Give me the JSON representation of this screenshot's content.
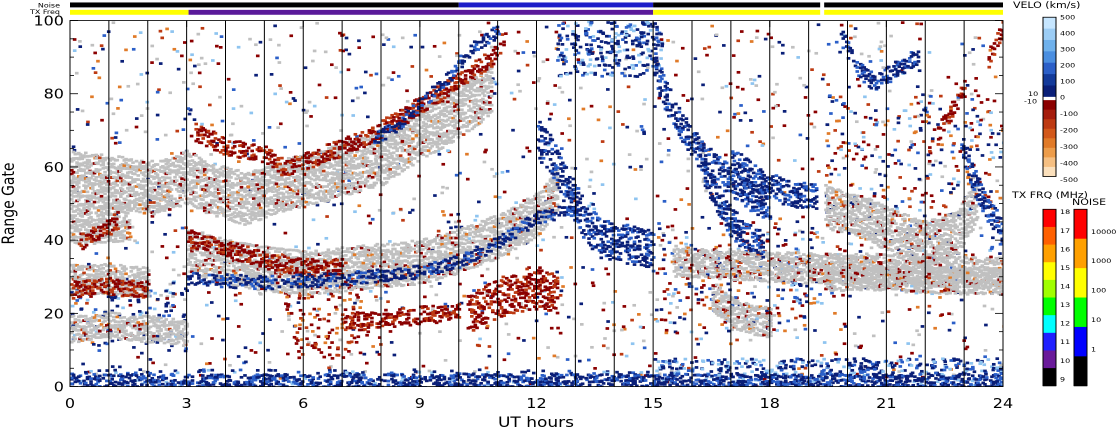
{
  "chart_data": {
    "type": "heatmap",
    "title": "",
    "xlabel": "UT hours",
    "ylabel": "Range Gate",
    "xlim": [
      0,
      24
    ],
    "ylim": [
      0,
      100
    ],
    "xticks": [
      "0",
      "3",
      "6",
      "9",
      "12",
      "15",
      "18",
      "21",
      "24"
    ],
    "yticks": [
      "0",
      "20",
      "40",
      "60",
      "80",
      "100"
    ],
    "hour_lines": [
      1,
      2,
      3,
      4,
      5,
      6,
      7,
      8,
      9,
      10,
      11,
      12,
      13,
      14,
      15,
      16,
      17,
      18,
      19,
      20,
      21,
      22,
      23
    ],
    "status_bars": {
      "noise_label": "Noise",
      "txfreq_label": "TX Freq",
      "txfreq_segments": [
        {
          "from": 0,
          "to": 3.05,
          "color": "#ffff00"
        },
        {
          "from": 3.05,
          "to": 15.0,
          "color": "#5a1a9a"
        },
        {
          "from": 15.0,
          "to": 19.3,
          "color": "#ffff00"
        },
        {
          "from": 19.3,
          "to": 19.4,
          "color": "#ffffff"
        },
        {
          "from": 19.4,
          "to": 24,
          "color": "#ffff00"
        }
      ],
      "noise_segments": [
        {
          "from": 0,
          "to": 10.0,
          "color": "#000000"
        },
        {
          "from": 10.0,
          "to": 15.0,
          "color": "#1c1cc8"
        },
        {
          "from": 15.0,
          "to": 19.3,
          "color": "#000000"
        },
        {
          "from": 19.3,
          "to": 19.4,
          "color": "#ffffff"
        },
        {
          "from": 19.4,
          "to": 24,
          "color": "#000000"
        }
      ]
    },
    "series": [
      {
        "kind": "ground",
        "points": [
          [
            0,
            58
          ],
          [
            0.8,
            57
          ],
          [
            1.5,
            56
          ],
          [
            2.2,
            55
          ],
          [
            3,
            58
          ],
          [
            3.5,
            55
          ],
          [
            4.5,
            52
          ],
          [
            5.2,
            55
          ],
          [
            6,
            57
          ],
          [
            7,
            60
          ],
          [
            8,
            63
          ],
          [
            9,
            70
          ],
          [
            10,
            76
          ],
          [
            10.8,
            82
          ]
        ],
        "width": 7
      },
      {
        "kind": "ground",
        "points": [
          [
            0,
            45
          ],
          [
            0.8,
            45
          ],
          [
            1.5,
            46
          ]
        ],
        "width": 5
      },
      {
        "kind": "ground",
        "points": [
          [
            3,
            38
          ],
          [
            4,
            35
          ],
          [
            5,
            33
          ],
          [
            6,
            32
          ],
          [
            7,
            33
          ],
          [
            8,
            34
          ],
          [
            9,
            35
          ],
          [
            10,
            38
          ],
          [
            11,
            42
          ],
          [
            12,
            48
          ],
          [
            12.5,
            55
          ]
        ],
        "width": 6
      },
      {
        "kind": "ground",
        "points": [
          [
            0,
            30
          ],
          [
            1,
            30
          ],
          [
            2,
            29
          ]
        ],
        "width": 4
      },
      {
        "kind": "ground",
        "points": [
          [
            0,
            16
          ],
          [
            1,
            17
          ],
          [
            2,
            16
          ],
          [
            3,
            15
          ]
        ],
        "width": 3
      },
      {
        "kind": "ground",
        "points": [
          [
            19.4,
            50
          ],
          [
            20.2,
            48
          ],
          [
            21,
            44
          ],
          [
            21.5,
            42
          ],
          [
            22,
            40
          ],
          [
            22.8,
            43
          ],
          [
            23.3,
            52
          ]
        ],
        "width": 6
      },
      {
        "kind": "ground",
        "points": [
          [
            15.5,
            35
          ],
          [
            17,
            34
          ],
          [
            19,
            33
          ],
          [
            21,
            33
          ],
          [
            22.5,
            32
          ],
          [
            24,
            32
          ]
        ],
        "width": 4
      },
      {
        "kind": "ground",
        "points": [
          [
            19.4,
            30
          ],
          [
            21,
            30
          ],
          [
            23,
            29
          ],
          [
            24,
            29
          ]
        ],
        "width": 3
      },
      {
        "kind": "ground",
        "points": [
          [
            16.5,
            25
          ],
          [
            17.2,
            20
          ],
          [
            18,
            18
          ]
        ],
        "width": 4
      },
      {
        "kind": "neg",
        "points": [
          [
            10.2,
            20
          ],
          [
            10.5,
            22
          ],
          [
            11,
            25
          ],
          [
            11.5,
            26
          ],
          [
            12,
            27
          ],
          [
            12.5,
            26
          ]
        ],
        "width": 5
      },
      {
        "kind": "neg",
        "points": [
          [
            7,
            18
          ],
          [
            8,
            19
          ],
          [
            9,
            20
          ],
          [
            10,
            21
          ]
        ],
        "width": 2
      },
      {
        "kind": "neg",
        "points": [
          [
            3.2,
            70
          ],
          [
            4,
            66
          ],
          [
            5,
            64
          ],
          [
            5.5,
            60
          ],
          [
            6,
            62
          ],
          [
            6.5,
            64
          ],
          [
            7.5,
            68
          ],
          [
            8.5,
            74
          ],
          [
            9.2,
            79
          ],
          [
            9.8,
            83
          ],
          [
            10.2,
            86
          ],
          [
            10.8,
            90
          ],
          [
            11.2,
            97
          ]
        ],
        "width": 2
      },
      {
        "kind": "neg",
        "points": [
          [
            3,
            41
          ],
          [
            4,
            38
          ],
          [
            5,
            35
          ],
          [
            6,
            33
          ],
          [
            7,
            33
          ]
        ],
        "width": 2
      },
      {
        "kind": "neg",
        "points": [
          [
            0.2,
            40
          ],
          [
            0.8,
            43
          ],
          [
            1.2,
            46
          ]
        ],
        "width": 2
      },
      {
        "kind": "neg",
        "points": [
          [
            0,
            27
          ],
          [
            1,
            28
          ],
          [
            2,
            27
          ]
        ],
        "width": 2
      },
      {
        "kind": "neg",
        "points": [
          [
            22.3,
            70
          ],
          [
            22.7,
            77
          ],
          [
            23,
            82
          ]
        ],
        "width": 2
      },
      {
        "kind": "neg",
        "points": [
          [
            23.6,
            90
          ],
          [
            23.8,
            95
          ],
          [
            24,
            99
          ]
        ],
        "width": 2
      },
      {
        "kind": "pos",
        "points": [
          [
            12,
            68
          ],
          [
            12.3,
            65
          ],
          [
            12.6,
            58
          ],
          [
            12.9,
            52
          ],
          [
            13.2,
            46
          ],
          [
            13.6,
            41
          ],
          [
            14,
            40
          ],
          [
            14.5,
            39
          ],
          [
            15,
            38
          ]
        ],
        "width": 5
      },
      {
        "kind": "pos",
        "points": [
          [
            15,
            87
          ],
          [
            15.3,
            80
          ],
          [
            15.7,
            72
          ],
          [
            16.2,
            64
          ],
          [
            16.8,
            58
          ],
          [
            17.2,
            55
          ],
          [
            17.6,
            52
          ],
          [
            18,
            50
          ]
        ],
        "width": 4
      },
      {
        "kind": "pos",
        "points": [
          [
            16.3,
            58
          ],
          [
            16.8,
            48
          ],
          [
            17.3,
            42
          ],
          [
            17.8,
            39
          ]
        ],
        "width": 3
      },
      {
        "kind": "pos",
        "points": [
          [
            17,
            62
          ],
          [
            17.5,
            58
          ],
          [
            18,
            55
          ],
          [
            18.5,
            53
          ],
          [
            19.2,
            52
          ]
        ],
        "width": 3
      },
      {
        "kind": "pos",
        "points": [
          [
            19.8,
            96
          ],
          [
            20.2,
            88
          ],
          [
            20.7,
            83
          ],
          [
            21.2,
            87
          ],
          [
            21.8,
            91
          ]
        ],
        "width": 2
      },
      {
        "kind": "pos",
        "points": [
          [
            22.9,
            66
          ],
          [
            23.2,
            57
          ],
          [
            23.5,
            50
          ],
          [
            23.8,
            45
          ],
          [
            24,
            40
          ]
        ],
        "width": 3
      },
      {
        "kind": "pos",
        "points": [
          [
            3,
            30
          ],
          [
            5,
            29
          ],
          [
            7,
            30
          ],
          [
            9,
            32
          ],
          [
            10,
            35
          ],
          [
            11,
            40
          ],
          [
            12,
            47
          ],
          [
            13,
            49
          ]
        ],
        "width": 1.5
      },
      {
        "kind": "pos",
        "points": [
          [
            7.8,
            68
          ],
          [
            8.5,
            73
          ],
          [
            9,
            78
          ],
          [
            9.7,
            85
          ],
          [
            10.2,
            92
          ],
          [
            11,
            98
          ]
        ],
        "width": 1.5
      },
      {
        "kind": "pos",
        "points": [
          [
            0,
            1.5
          ],
          [
            6,
            1.5
          ],
          [
            12,
            1.5
          ],
          [
            18,
            1.5
          ],
          [
            24,
            1.5
          ]
        ],
        "width": 2
      }
    ],
    "scatter_regions": [
      {
        "x": [
          0,
          24
        ],
        "y": [
          0,
          100
        ],
        "count": 1500
      },
      {
        "x": [
          12.5,
          15.2
        ],
        "y": [
          85,
          100
        ],
        "count": 260,
        "kind": "pos"
      },
      {
        "x": [
          15,
          24
        ],
        "y": [
          0,
          8
        ],
        "count": 520,
        "kind": "pos"
      },
      {
        "x": [
          0,
          15
        ],
        "y": [
          0,
          5
        ],
        "count": 280,
        "kind": "pos"
      },
      {
        "x": [
          5.5,
          7.5
        ],
        "y": [
          8,
          26
        ],
        "count": 110,
        "kind": "neg"
      },
      {
        "x": [
          0,
          3
        ],
        "y": [
          10,
          30
        ],
        "count": 120,
        "kind": "pos"
      },
      {
        "x": [
          15,
          19.3
        ],
        "y": [
          15,
          45
        ],
        "count": 260,
        "kind": "mix"
      },
      {
        "x": [
          19.4,
          24
        ],
        "y": [
          25,
          80
        ],
        "count": 360,
        "kind": "mix"
      }
    ],
    "velocity_colorbar": {
      "title": "VELO (km/s)",
      "ticks_top": [
        "500",
        "400",
        "300",
        "200",
        "100",
        "0"
      ],
      "ticks_bottom": [
        "-100",
        "-200",
        "-300",
        "-400",
        "-500"
      ],
      "near_zero": [
        "10",
        "-10"
      ],
      "colors_top": [
        "#c6e6ff",
        "#9ccdf5",
        "#6fb1ec",
        "#4a8ee0",
        "#2b5fc8",
        "#133a9a",
        "#0a1f78"
      ],
      "colors_bottom": [
        "#8b0000",
        "#a51d0c",
        "#bd3a12",
        "#d2581a",
        "#e07a28",
        "#ec9c4a",
        "#f5bf82",
        "#fbe0bc"
      ]
    },
    "txfreq_colorbar": {
      "title": "TX FRQ (MHz)",
      "ticks": [
        "18",
        "17",
        "16",
        "15",
        "14",
        "13",
        "12",
        "11",
        "10",
        "9"
      ],
      "colors": [
        "#ff0000",
        "#ff6000",
        "#ffa000",
        "#ffff00",
        "#a0ff00",
        "#00ff00",
        "#00ffff",
        "#2020ff",
        "#6a1a9a",
        "#000000"
      ]
    },
    "noise_colorbar": {
      "title": "NOISE",
      "ticks": [
        "10000",
        "1000",
        "100",
        "10",
        "1"
      ],
      "colors": [
        "#ff0000",
        "#ffa000",
        "#ffff00",
        "#00ff00",
        "#0000ff",
        "#000000"
      ]
    }
  },
  "colors": {
    "ground": "#c0c0c0",
    "pos_dark": "#0a1f78",
    "pos_mid": "#2b5fc8",
    "pos_light": "#8ec4f0",
    "neg_dark": "#8b0000",
    "neg_mid": "#bd3a12",
    "neg_orange": "#e07a28"
  }
}
